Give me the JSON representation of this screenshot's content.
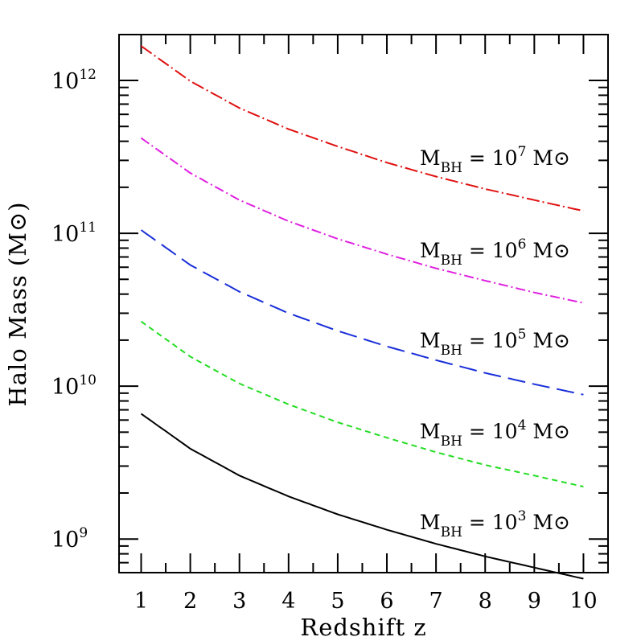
{
  "chart_data": {
    "type": "line",
    "xlabel": "Redshift z",
    "ylabel": "Halo Mass (M⊙)",
    "xlim": [
      0.55,
      10.5
    ],
    "ylim_log10": [
      8.78,
      12.3
    ],
    "y_scale": "log",
    "grid": false,
    "x_ticks": [
      "1",
      "2",
      "3",
      "4",
      "5",
      "6",
      "7",
      "8",
      "9",
      "10"
    ],
    "y_tick_labels": [
      {
        "base": "10",
        "exp": "9",
        "value": 1000000000.0
      },
      {
        "base": "10",
        "exp": "10",
        "value": 10000000000.0
      },
      {
        "base": "10",
        "exp": "11",
        "value": 100000000000.0
      },
      {
        "base": "10",
        "exp": "12",
        "value": 1000000000000.0
      }
    ],
    "series": [
      {
        "color": "#000000",
        "dash": "",
        "x": [
          1,
          2,
          3,
          4,
          5,
          6,
          7,
          8,
          9,
          10
        ],
        "y": [
          6600000000.0,
          3900000000.0,
          2600000000.0,
          1900000000.0,
          1450000000.0,
          1150000000.0,
          930000000.0,
          770000000.0,
          650000000.0,
          550000000.0
        ]
      },
      {
        "color": "#22dd22",
        "dash": "7,5",
        "x": [
          1,
          2,
          3,
          4,
          5,
          6,
          7,
          8,
          9,
          10
        ],
        "y": [
          26500000000.0,
          15600000000.0,
          10400000000.0,
          7600000000.0,
          5800000000.0,
          4600000000.0,
          3700000000.0,
          3050000000.0,
          2600000000.0,
          2200000000.0
        ]
      },
      {
        "color": "#1a2fd8",
        "dash": "22,9",
        "x": [
          1,
          2,
          3,
          4,
          5,
          6,
          7,
          8,
          9,
          10
        ],
        "y": [
          105000000000.0,
          62000000000.0,
          41500000000.0,
          30000000000.0,
          23000000000.0,
          18200000000.0,
          14800000000.0,
          12200000000.0,
          10300000000.0,
          8800000000.0
        ]
      },
      {
        "color": "#e020e0",
        "dash": "12,4,2,4",
        "x": [
          1,
          2,
          3,
          4,
          5,
          6,
          7,
          8,
          9,
          10
        ],
        "y": [
          420000000000.0,
          248000000000.0,
          165000000000.0,
          120000000000.0,
          92000000000.0,
          73000000000.0,
          59000000000.0,
          49000000000.0,
          41000000000.0,
          35000000000.0
        ]
      },
      {
        "color": "#e01010",
        "dash": "16,4,2,4",
        "x": [
          1,
          2,
          3,
          4,
          5,
          6,
          7,
          8,
          9,
          10
        ],
        "y": [
          1680000000000.0,
          990000000000.0,
          660000000000.0,
          480000000000.0,
          370000000000.0,
          290000000000.0,
          235000000000.0,
          195000000000.0,
          165000000000.0,
          140000000000.0
        ]
      }
    ],
    "annotations": [
      {
        "pre": "M",
        "sub": "BH",
        "mid": " = 10",
        "exp": "7",
        "post": " M⊙"
      },
      {
        "pre": "M",
        "sub": "BH",
        "mid": " = 10",
        "exp": "6",
        "post": " M⊙"
      },
      {
        "pre": "M",
        "sub": "BH",
        "mid": " = 10",
        "exp": "5",
        "post": " M⊙"
      },
      {
        "pre": "M",
        "sub": "BH",
        "mid": " = 10",
        "exp": "4",
        "post": " M⊙"
      },
      {
        "pre": "M",
        "sub": "BH",
        "mid": " = 10",
        "exp": "3",
        "post": " M⊙"
      }
    ]
  }
}
